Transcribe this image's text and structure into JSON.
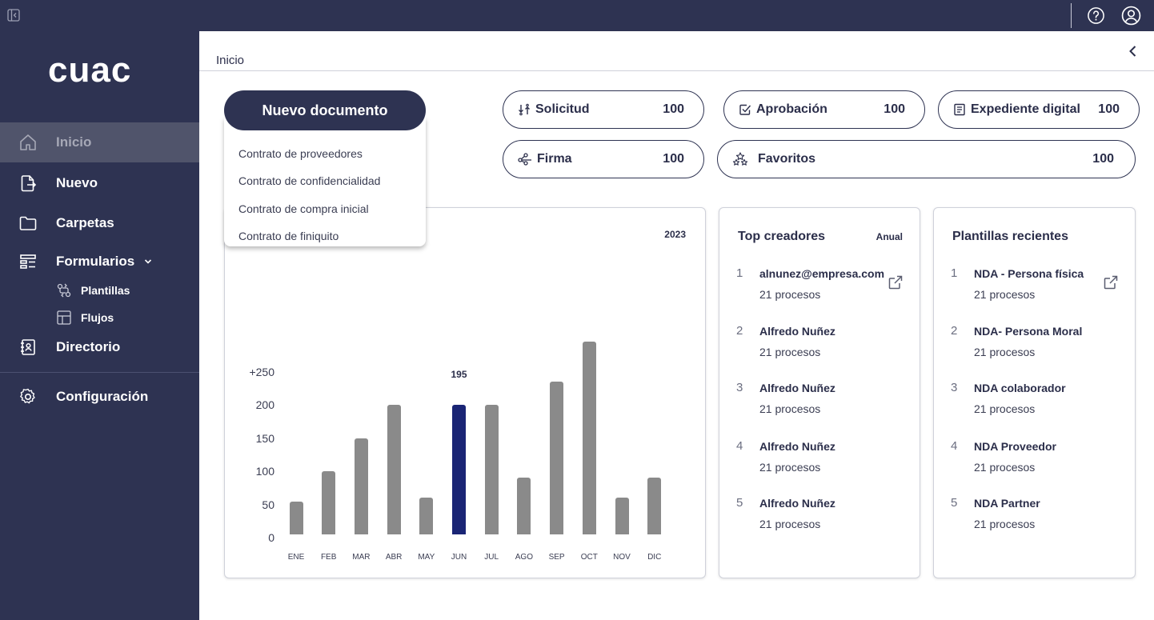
{
  "app": {
    "logo": "cuac",
    "collapse_icon": "sidebar-collapse-icon",
    "help_icon": "help-circle-icon",
    "user_icon": "user-circle-icon"
  },
  "sidebar": {
    "items": [
      {
        "label": "Inicio",
        "icon": "home-icon",
        "active": true
      },
      {
        "label": "Nuevo",
        "icon": "new-file-icon"
      },
      {
        "label": "Carpetas",
        "icon": "folder-icon"
      },
      {
        "label": "Formularios",
        "icon": "forms-icon"
      },
      {
        "label": "Directorio",
        "icon": "contacts-icon"
      },
      {
        "label": "Configuración",
        "icon": "gear-icon"
      }
    ],
    "subitems": [
      {
        "label": "Plantillas",
        "icon": "templates-icon"
      },
      {
        "label": "Flujos",
        "icon": "flows-icon"
      }
    ]
  },
  "header": {
    "breadcrumb": "Inicio"
  },
  "new_document": {
    "label": "Nuevo documento",
    "options": [
      "Contrato de proveedores",
      "Contrato de confidencialidad",
      "Contrato de compra inicial",
      "Contrato de finiquito"
    ]
  },
  "stats": [
    {
      "label": "Solicitud",
      "value": "100",
      "icon": "swap-icon"
    },
    {
      "label": "Aprobación",
      "value": "100",
      "icon": "check-square-icon"
    },
    {
      "label": "Expediente digital",
      "value": "100",
      "icon": "file-list-icon"
    },
    {
      "label": "Firma",
      "value": "100",
      "icon": "signature-nodes-icon"
    },
    {
      "label": "Favoritos",
      "value": "100",
      "icon": "stars-icon"
    }
  ],
  "chart_data": {
    "type": "bar",
    "title": "2023",
    "categories": [
      "ENE",
      "FEB",
      "MAR",
      "ABR",
      "MAY",
      "JUN",
      "JUL",
      "AGO",
      "SEP",
      "OCT",
      "NOV",
      "DIC"
    ],
    "values": [
      50,
      95,
      145,
      195,
      55,
      195,
      195,
      85,
      230,
      290,
      55,
      85
    ],
    "highlight_index": 5,
    "highlight_label": "195",
    "yticks": [
      "0",
      "50",
      "100",
      "150",
      "200",
      "+250"
    ],
    "ylim": [
      0,
      300
    ],
    "colors": {
      "default": "#8a8a8a",
      "highlight": "#1a2575"
    }
  },
  "top_creators": {
    "title": "Top creadores",
    "period": "Anual",
    "items": [
      {
        "rank": "1",
        "name": "alnunez@empresa.com",
        "sub": "21 procesos"
      },
      {
        "rank": "2",
        "name": "Alfredo Nuñez",
        "sub": "21 procesos"
      },
      {
        "rank": "3",
        "name": "Alfredo Nuñez",
        "sub": "21 procesos"
      },
      {
        "rank": "4",
        "name": "Alfredo Nuñez",
        "sub": "21 procesos"
      },
      {
        "rank": "5",
        "name": "Alfredo Nuñez",
        "sub": "21 procesos"
      }
    ]
  },
  "recent_templates": {
    "title": "Plantillas recientes",
    "items": [
      {
        "rank": "1",
        "name": "NDA - Persona física",
        "sub": "21 procesos"
      },
      {
        "rank": "2",
        "name": "NDA- Persona Moral",
        "sub": "21 procesos"
      },
      {
        "rank": "3",
        "name": "NDA colaborador",
        "sub": "21 procesos"
      },
      {
        "rank": "4",
        "name": "NDA Proveedor",
        "sub": "21 procesos"
      },
      {
        "rank": "5",
        "name": "NDA Partner",
        "sub": "21 procesos"
      }
    ]
  }
}
